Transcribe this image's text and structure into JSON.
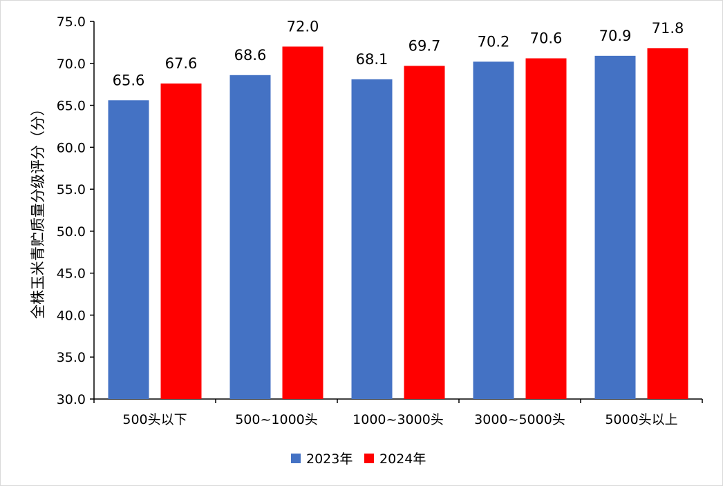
{
  "chart_data": {
    "type": "bar",
    "title": "",
    "xlabel": "",
    "ylabel": "全株玉米青贮质量分级评分（分）",
    "ylim": [
      30,
      75
    ],
    "y_ticks": [
      "30.0",
      "35.0",
      "40.0",
      "45.0",
      "50.0",
      "55.0",
      "60.0",
      "65.0",
      "70.0",
      "75.0"
    ],
    "categories": [
      "500头以下",
      "500~1000头",
      "1000~3000头",
      "3000~5000头",
      "5000头以上"
    ],
    "series": [
      {
        "name": "2023年",
        "color": "#4472C4",
        "values": [
          65.6,
          68.6,
          68.1,
          70.2,
          70.9
        ],
        "labels": [
          "65.6",
          "68.6",
          "68.1",
          "70.2",
          "70.9"
        ]
      },
      {
        "name": "2024年",
        "color": "#FF0000",
        "values": [
          67.6,
          72.0,
          69.7,
          70.6,
          71.8
        ],
        "labels": [
          "67.6",
          "72.0",
          "69.7",
          "70.6",
          "71.8"
        ]
      }
    ],
    "legend_position": "bottom",
    "grid": false
  }
}
